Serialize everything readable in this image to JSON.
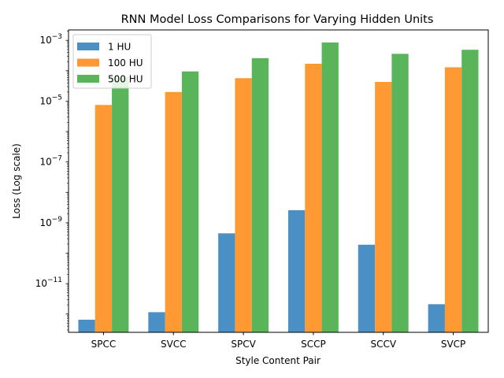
{
  "chart_data": {
    "type": "bar",
    "title": "RNN Model Loss Comparisons for Varying Hidden Units",
    "xlabel": "Style Content Pair",
    "ylabel": "Loss (Log scale)",
    "yscale": "log",
    "ylim": [
      2.5e-13,
      0.0022
    ],
    "yticks": [
      {
        "value": 1e-11,
        "base": "10",
        "exp": "−11"
      },
      {
        "value": 1e-09,
        "base": "10",
        "exp": "−9"
      },
      {
        "value": 1e-07,
        "base": "10",
        "exp": "−7"
      },
      {
        "value": 1e-05,
        "base": "10",
        "exp": "−5"
      },
      {
        "value": 0.001,
        "base": "10",
        "exp": "−3"
      }
    ],
    "categories": [
      "SPCC",
      "SVCC",
      "SPCV",
      "SCCP",
      "SCCV",
      "SVCP"
    ],
    "series": [
      {
        "name": "1 HU",
        "color": "#4a90c4",
        "values": [
          6.5e-13,
          1.15e-12,
          4.5e-10,
          2.6e-09,
          1.9e-10,
          2.1e-12
        ]
      },
      {
        "name": "100 HU",
        "color": "#ff9933",
        "values": [
          7.5e-06,
          2e-05,
          5.7e-05,
          0.00017,
          4.3e-05,
          0.00013
        ]
      },
      {
        "name": "500 HU",
        "color": "#5ab55a",
        "values": [
          6.2e-05,
          9.5e-05,
          0.00026,
          0.00085,
          0.00036,
          0.00049
        ]
      }
    ],
    "grid": false,
    "legend_position": "top-left"
  }
}
